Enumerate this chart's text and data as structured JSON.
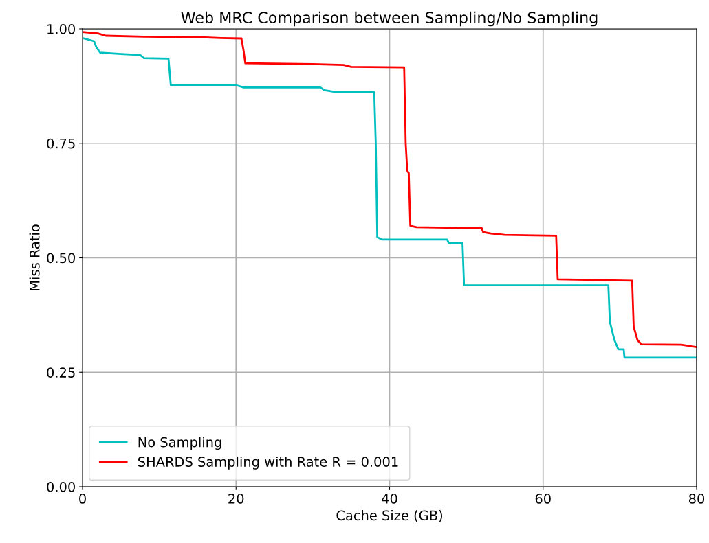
{
  "chart_data": {
    "type": "line",
    "title": "Web MRC Comparison between Sampling/No Sampling",
    "xlabel": "Cache Size (GB)",
    "ylabel": "Miss Ratio",
    "xlim": [
      0,
      80
    ],
    "xticks": [
      0,
      20,
      40,
      60,
      80
    ],
    "ylim": [
      0,
      1
    ],
    "yticks": [
      {
        "value": 0,
        "label": "0.00"
      },
      {
        "value": 0.25,
        "label": "0.25"
      },
      {
        "value": 0.5,
        "label": "0.50"
      },
      {
        "value": 0.75,
        "label": "0.75"
      },
      {
        "value": 1,
        "label": "1.00"
      }
    ],
    "grid": true,
    "legend": "bottom left",
    "marker": "none",
    "line_style": "solid",
    "series": [
      {
        "name": "No Sampling",
        "color": "#00bfbf",
        "x": [
          0,
          1.5,
          1.8,
          2.3,
          5,
          7.5,
          8,
          11.2,
          11.5,
          20,
          21,
          31,
          31.5,
          33,
          38,
          38.2,
          38.4,
          39,
          47.5,
          47.7,
          49.5,
          49.7,
          68.5,
          68.7,
          69.3,
          69.8,
          70.5,
          70.6,
          80
        ],
        "values": [
          0.98,
          0.973,
          0.96,
          0.948,
          0.945,
          0.943,
          0.936,
          0.935,
          0.877,
          0.877,
          0.872,
          0.872,
          0.866,
          0.862,
          0.862,
          0.75,
          0.545,
          0.54,
          0.54,
          0.533,
          0.533,
          0.44,
          0.44,
          0.36,
          0.32,
          0.3,
          0.3,
          0.282,
          0.282
        ]
      },
      {
        "name": "SHARDS Sampling with Rate R = 0.001",
        "color": "#ff0000",
        "x": [
          0,
          2,
          3,
          8,
          15,
          18,
          20.7,
          21,
          21.2,
          30,
          34,
          35,
          41.9,
          42.1,
          42.3,
          42.5,
          42.7,
          43.5,
          50,
          52,
          52.2,
          53.2,
          55,
          61.7,
          61.9,
          71.6,
          71.8,
          72.3,
          72.8,
          78,
          80
        ],
        "values": [
          0.993,
          0.99,
          0.985,
          0.983,
          0.982,
          0.98,
          0.979,
          0.95,
          0.925,
          0.923,
          0.921,
          0.917,
          0.916,
          0.75,
          0.69,
          0.685,
          0.57,
          0.567,
          0.565,
          0.565,
          0.556,
          0.553,
          0.55,
          0.548,
          0.453,
          0.45,
          0.35,
          0.32,
          0.311,
          0.31,
          0.305
        ]
      }
    ]
  }
}
